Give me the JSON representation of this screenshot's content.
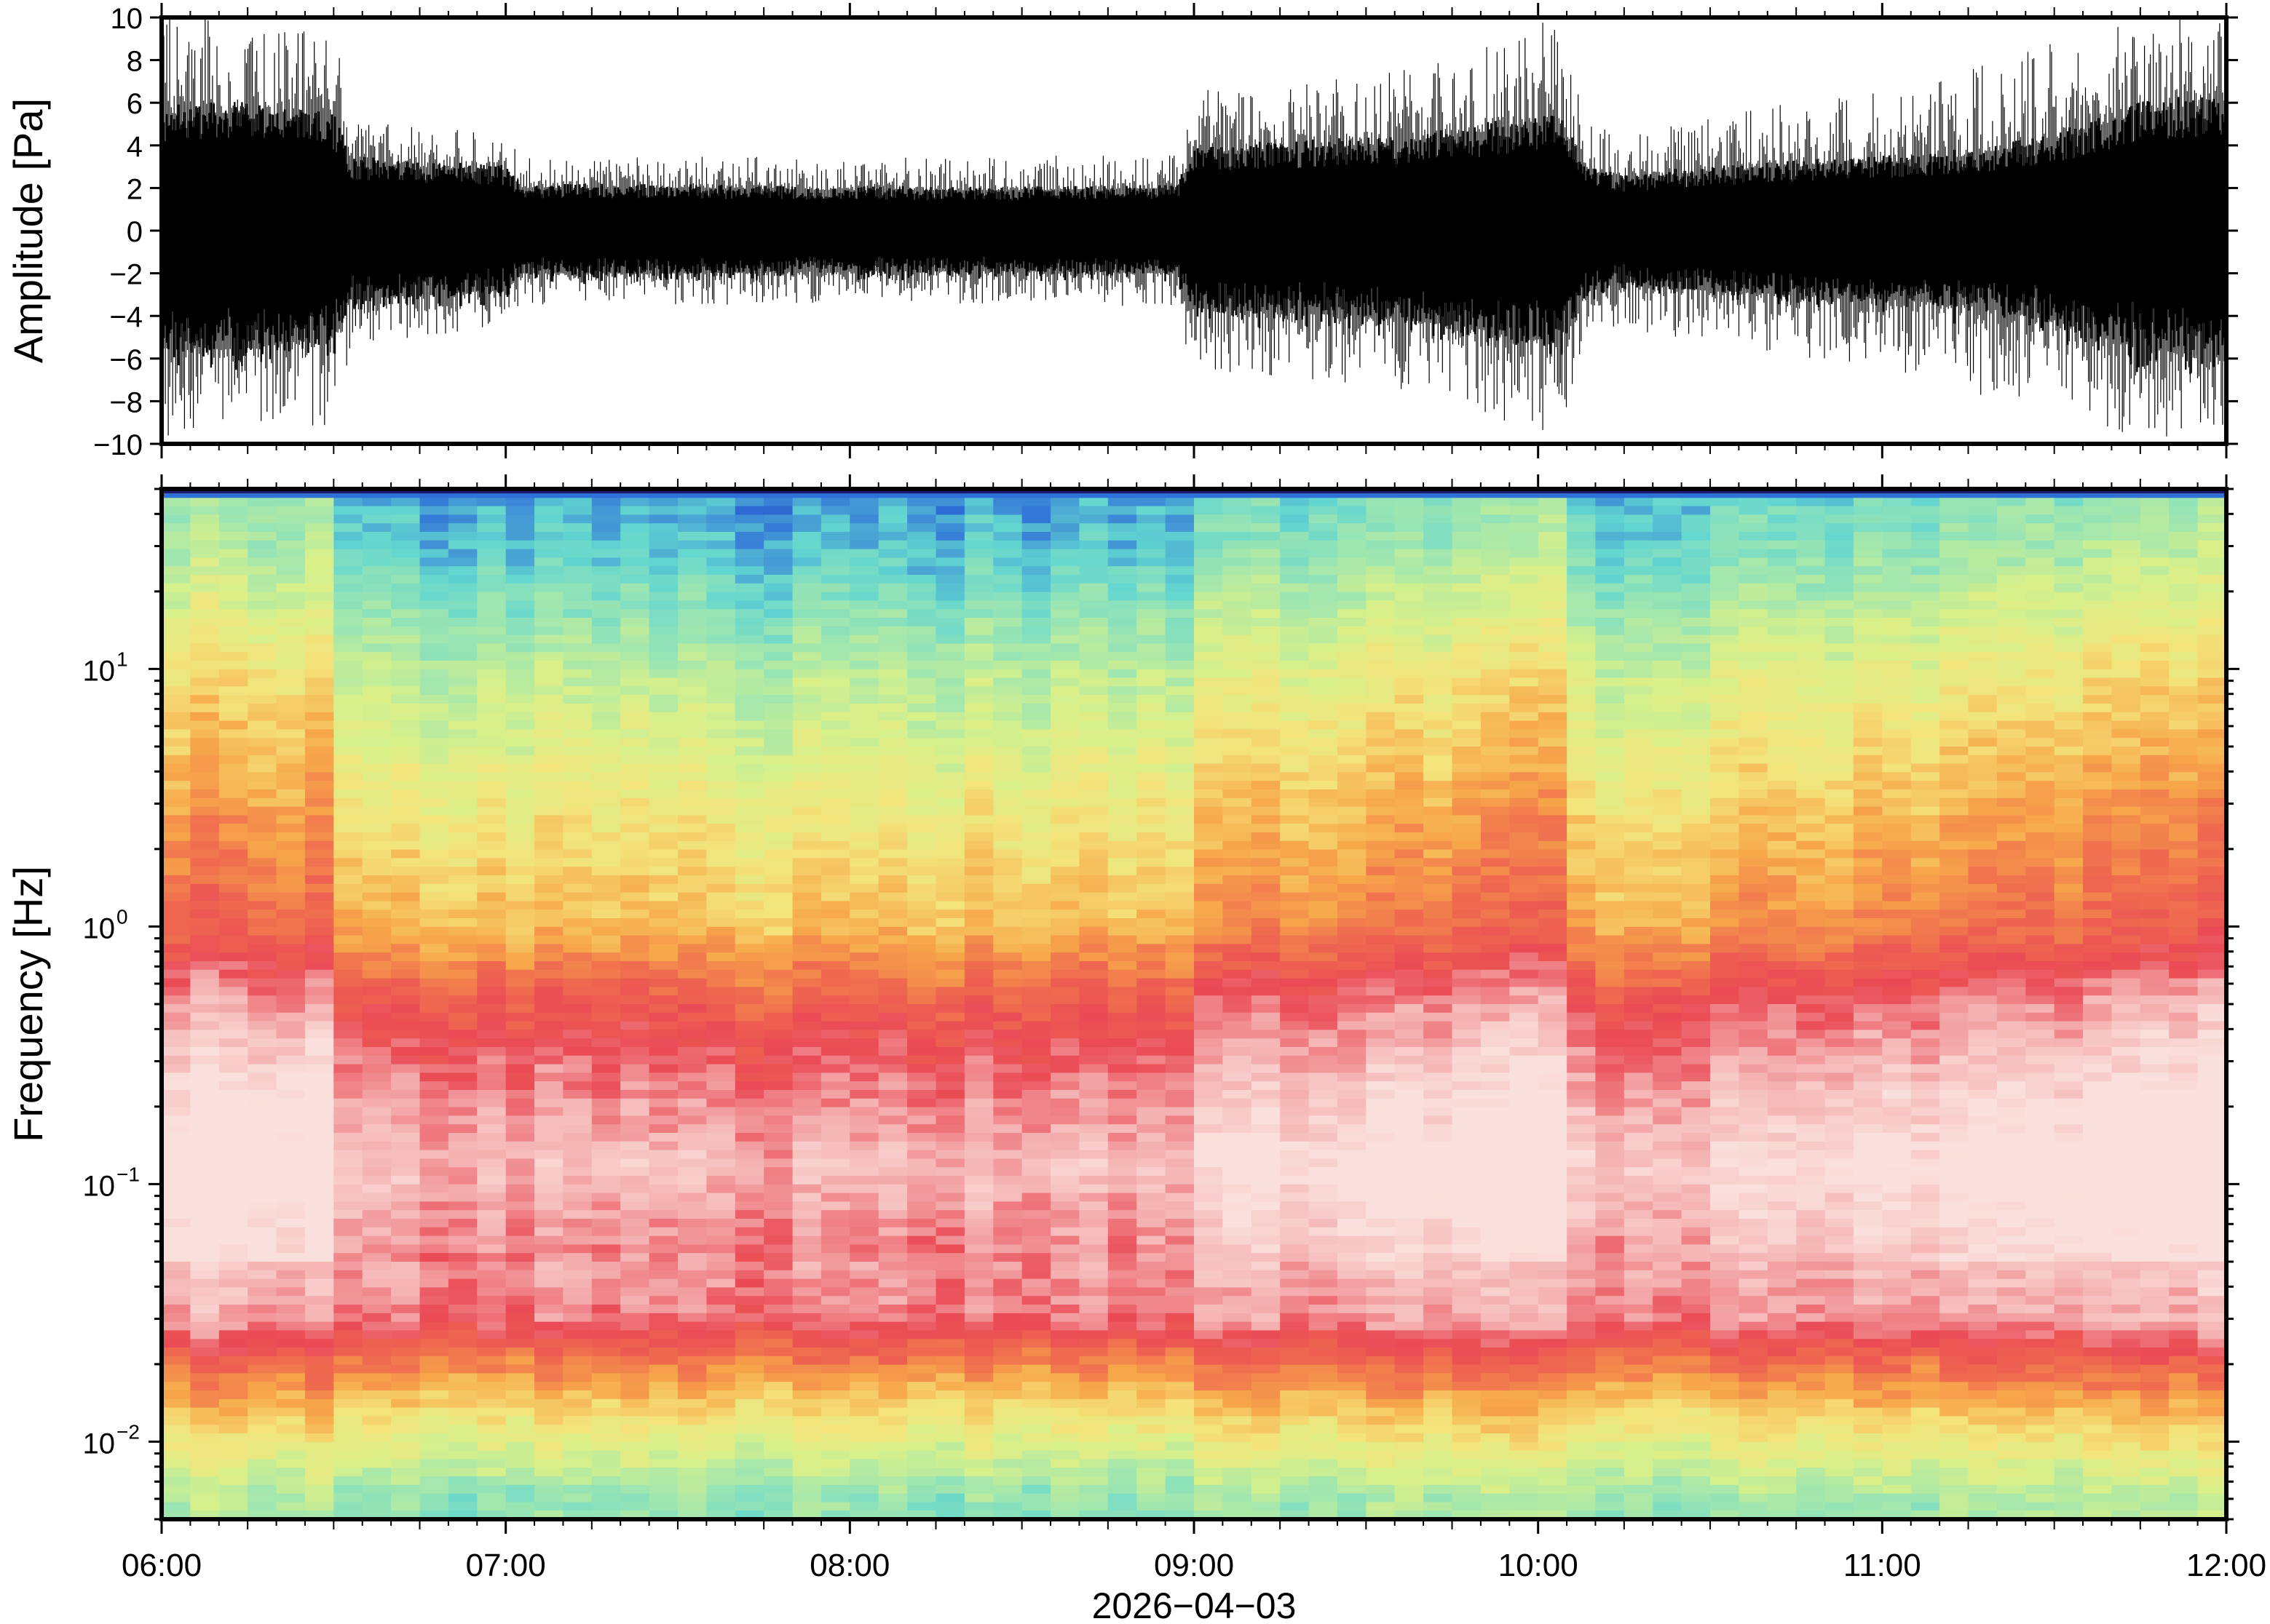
{
  "chart_data": [
    {
      "type": "line",
      "panel": "waveform",
      "ylabel": "Amplitude [Pa]",
      "ylim": [
        -10,
        10
      ],
      "yticks": [
        10,
        8,
        6,
        4,
        2,
        0,
        -2,
        -4,
        -6,
        -8,
        -10
      ],
      "ytick_labels": [
        "10",
        "8",
        "6",
        "4",
        "2",
        "0",
        "−2",
        "−4",
        "−6",
        "−8",
        "−10"
      ],
      "xlim_hours": [
        6,
        12
      ],
      "series_color": "#000000",
      "envelope": {
        "time_hours": [
          6.0,
          6.25,
          6.5,
          6.55,
          6.75,
          7.0,
          7.05,
          7.5,
          8.0,
          8.5,
          8.95,
          9.0,
          9.05,
          9.5,
          9.75,
          9.9,
          10.05,
          10.15,
          10.25,
          10.5,
          10.75,
          11.0,
          11.25,
          11.5,
          11.75,
          12.0
        ],
        "typical_abs_pa": [
          5.5,
          5.5,
          5.0,
          3.2,
          3.0,
          2.8,
          2.0,
          2.0,
          1.9,
          1.9,
          2.0,
          3.6,
          3.7,
          4.0,
          4.4,
          4.8,
          5.2,
          2.8,
          2.4,
          2.8,
          3.0,
          3.2,
          3.5,
          4.2,
          5.5,
          6.0
        ],
        "peak_abs_pa": [
          10,
          10,
          9.5,
          5.5,
          5.0,
          4.5,
          3.5,
          3.5,
          3.4,
          3.5,
          3.6,
          7.0,
          7.0,
          7.2,
          8.0,
          9.5,
          10,
          5.0,
          4.5,
          5.5,
          6.0,
          6.5,
          7.5,
          9.0,
          10,
          10
        ]
      }
    },
    {
      "type": "heatmap",
      "panel": "spectrogram",
      "ylabel": "Frequency [Hz]",
      "yscale": "log",
      "ylim": [
        0.005,
        50
      ],
      "yticks": [
        0.01,
        0.1,
        1,
        10
      ],
      "ytick_labels": [
        {
          "base": "10",
          "exp": "−2"
        },
        {
          "base": "10",
          "exp": "−1"
        },
        {
          "base": "10",
          "exp": "0"
        },
        {
          "base": "10",
          "exp": "1"
        }
      ],
      "colormap": [
        "#1a1a6e",
        "#2f6fd8",
        "#62d6d0",
        "#9fe6b0",
        "#d8f08a",
        "#f4e27a",
        "#f7a84a",
        "#ef6b4f",
        "#ea4a55",
        "#f4b0b0",
        "#fae0dc"
      ],
      "relative_level_profile": {
        "freq_hz": [
          0.006,
          0.012,
          0.02,
          0.03,
          0.06,
          0.12,
          0.25,
          0.5,
          1.0,
          3.0,
          10,
          30,
          48
        ],
        "level": [
          0.3,
          0.5,
          0.68,
          0.86,
          0.92,
          0.98,
          0.9,
          0.8,
          0.62,
          0.52,
          0.4,
          0.24,
          0.2
        ]
      },
      "time_level_offsets": {
        "time_hours": [
          6.0,
          6.5,
          6.55,
          7.0,
          8.0,
          9.0,
          9.05,
          9.75,
          10.05,
          10.15,
          10.5,
          11.0,
          11.5,
          12.0
        ],
        "offset": [
          0.1,
          0.1,
          -0.04,
          -0.05,
          -0.07,
          -0.04,
          0.02,
          0.06,
          0.12,
          -0.06,
          0.0,
          0.04,
          0.08,
          0.12
        ]
      }
    }
  ],
  "xaxis": {
    "xlim_hours": [
      6,
      12
    ],
    "tick_labels": [
      "06:00",
      "07:00",
      "08:00",
      "09:00",
      "10:00",
      "11:00",
      "12:00"
    ],
    "tick_hours": [
      6,
      7,
      8,
      9,
      10,
      11,
      12
    ],
    "date_label": "2026−04−03"
  }
}
